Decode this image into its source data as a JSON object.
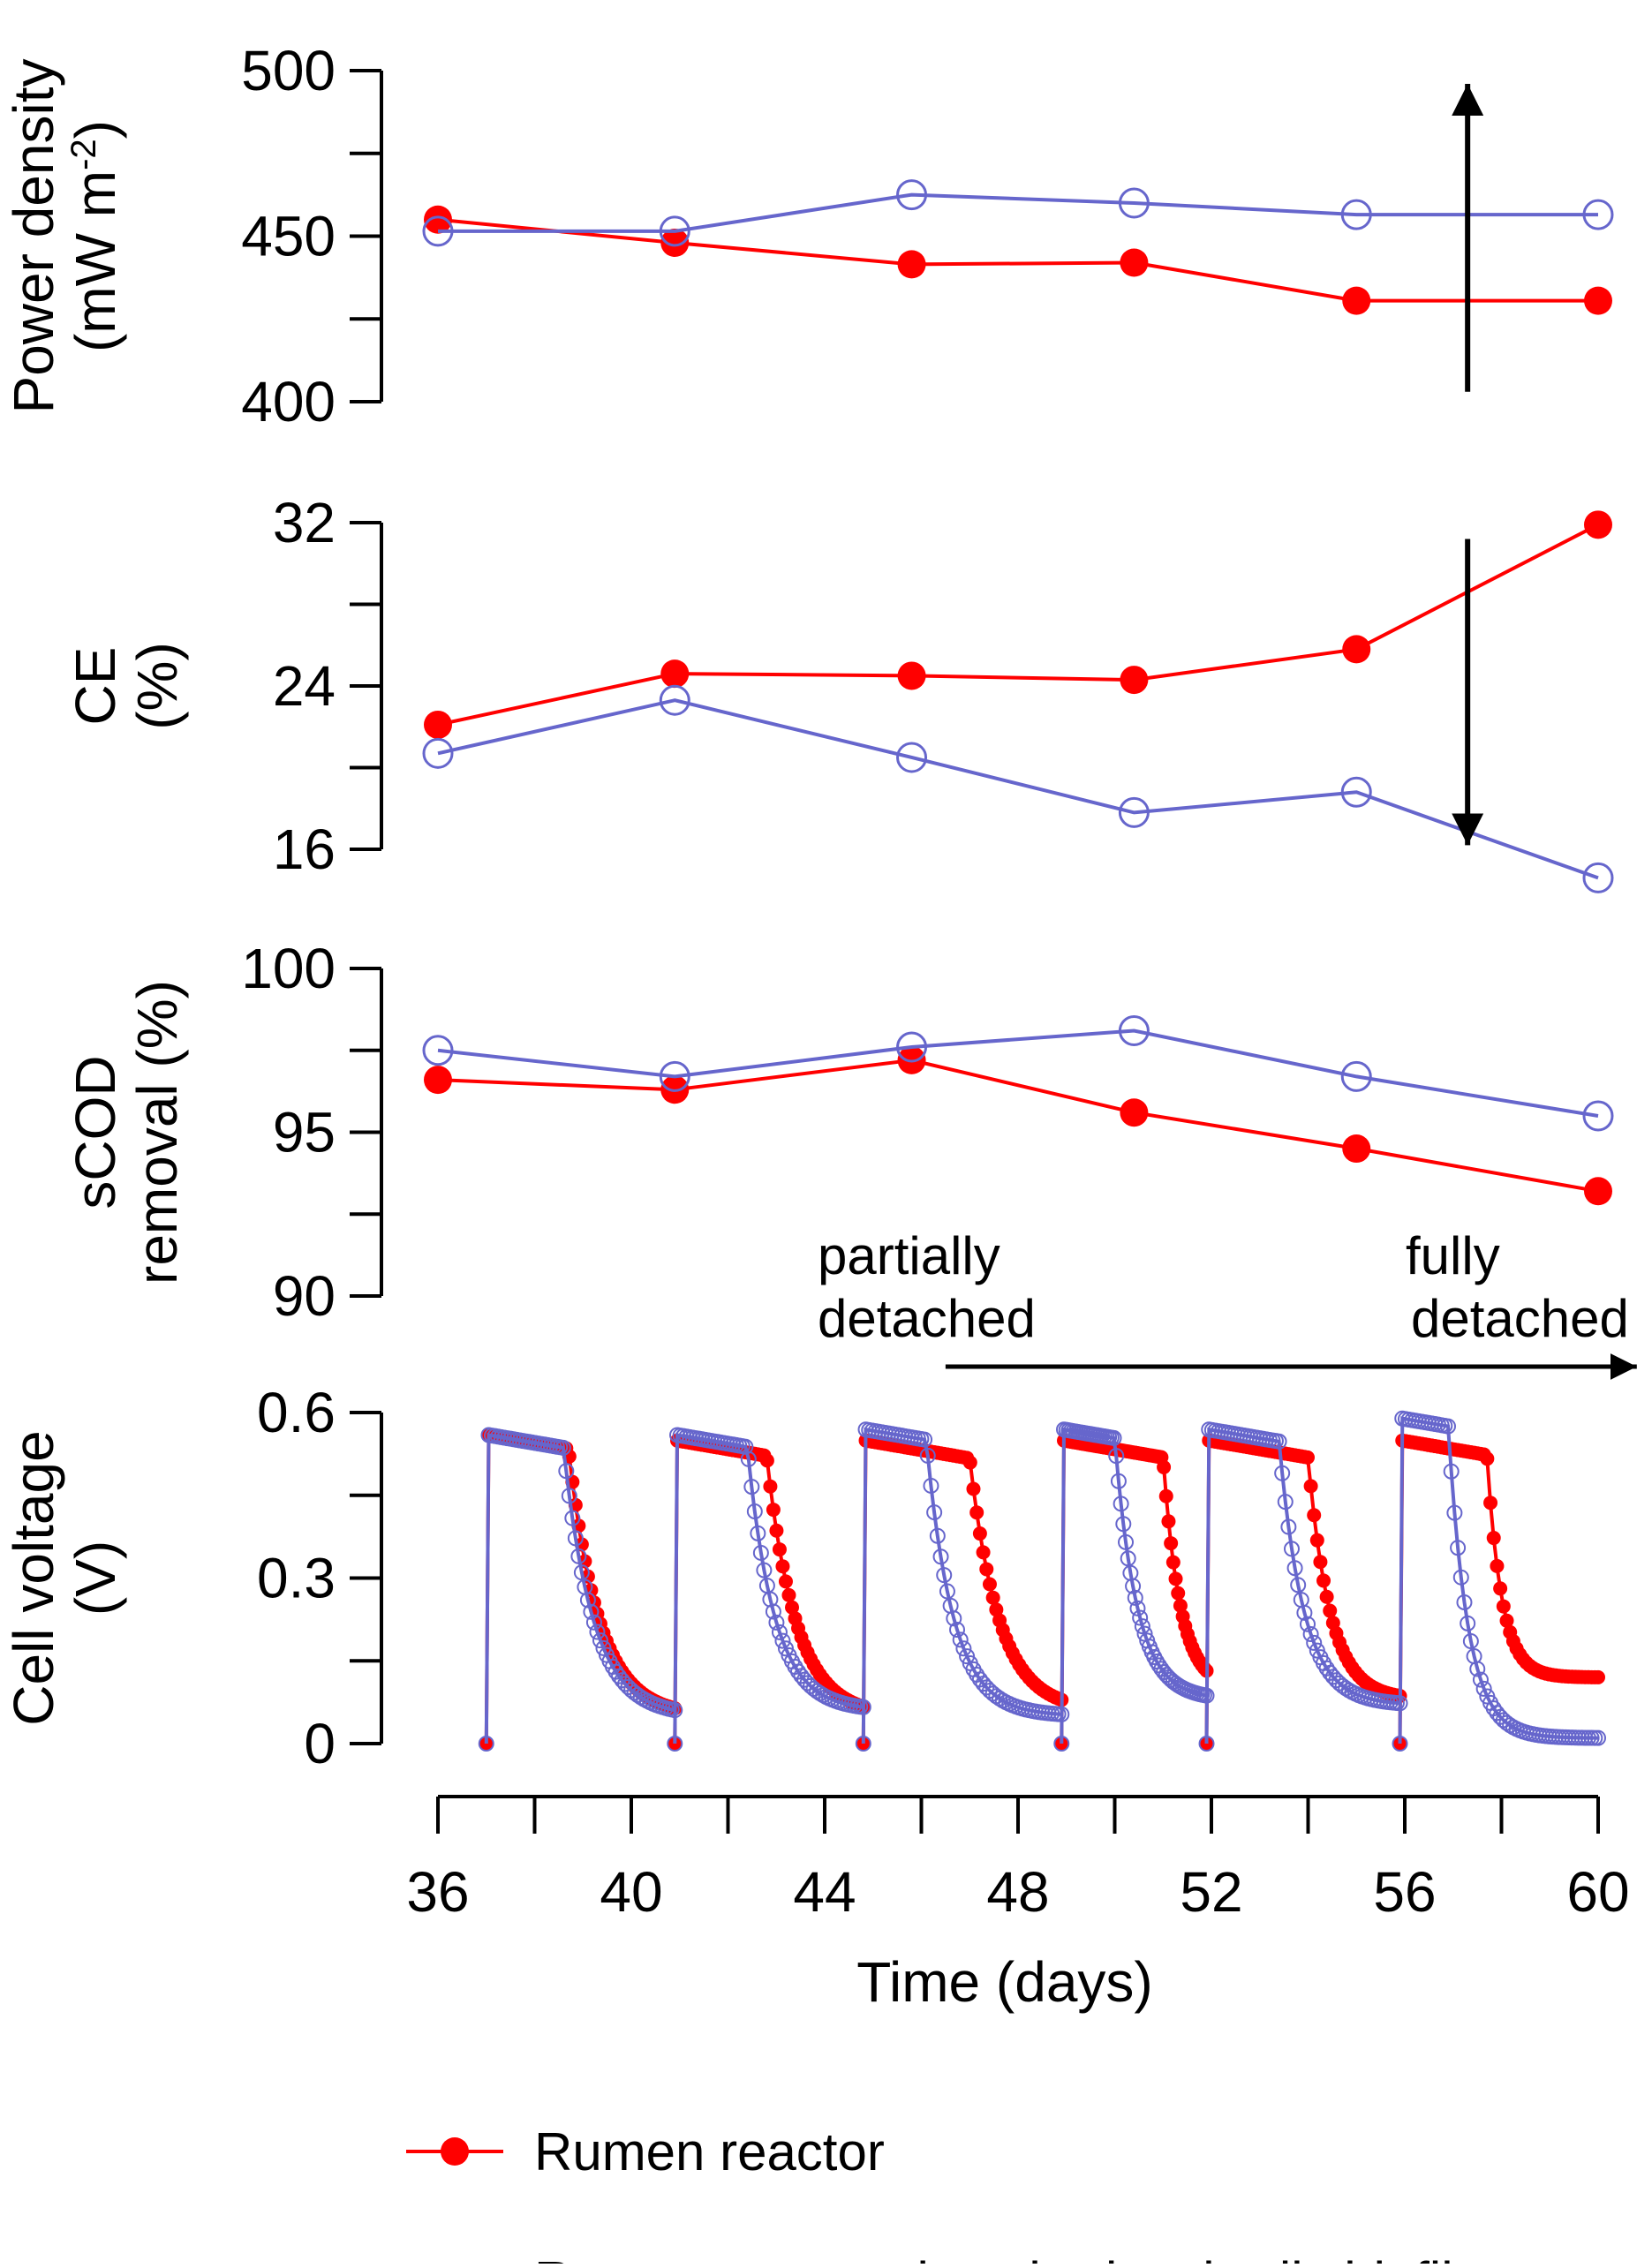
{
  "chart_data": {
    "type": "line",
    "colors": {
      "rumen": "#ff0000",
      "detached": "#6666cc",
      "arrow": "#000000"
    },
    "x_axis": {
      "label": "Time (days)",
      "range": [
        36,
        60
      ],
      "major_ticks": [
        36,
        40,
        44,
        48,
        52,
        56,
        60
      ],
      "minor_ticks": [
        38,
        42,
        46,
        50,
        54,
        58
      ],
      "tick_labels": [
        "36",
        "40",
        "44",
        "48",
        "52",
        "56",
        "60"
      ]
    },
    "panels": [
      {
        "id": "power",
        "ylabel": [
          "Power density",
          "(mW m",
          "-2",
          ")"
        ],
        "ylim": [
          400,
          500
        ],
        "major_ticks": [
          400,
          450,
          500
        ],
        "minor_ticks": [
          425,
          475
        ],
        "tick_labels": [
          "400",
          "450",
          "500"
        ],
        "series": [
          {
            "name": "Rumen reactor",
            "x": [
              36,
              40.9,
              45.8,
              50.4,
              55,
              60
            ],
            "y": [
              455,
              448,
              441.5,
              442,
              430.5,
              430.5
            ]
          },
          {
            "name": "Rumen reactor detached cathodic biofilm",
            "x": [
              36,
              40.9,
              45.8,
              50.4,
              55,
              60
            ],
            "y": [
              451.5,
              451.5,
              462.5,
              460,
              456.5,
              456.5
            ]
          }
        ],
        "arrow": {
          "x": 57.3,
          "from": 403,
          "to": 496,
          "direction": "up"
        }
      },
      {
        "id": "ce",
        "ylabel": [
          "CE",
          "(%)"
        ],
        "ylim": [
          16,
          32
        ],
        "major_ticks": [
          16,
          24,
          32
        ],
        "minor_ticks": [
          20,
          28
        ],
        "tick_labels": [
          "16",
          "24",
          "32"
        ],
        "series": [
          {
            "name": "Rumen reactor",
            "x": [
              36,
              40.9,
              45.8,
              50.4,
              55,
              60
            ],
            "y": [
              22.1,
              24.6,
              24.5,
              24.3,
              25.8,
              31.9
            ]
          },
          {
            "name": "Rumen reactor detached cathodic biofilm",
            "x": [
              36,
              40.9,
              45.8,
              50.4,
              55,
              60
            ],
            "y": [
              20.7,
              23.3,
              20.5,
              17.8,
              18.8,
              14.6
            ]
          }
        ],
        "arrow": {
          "x": 57.3,
          "from": 31.2,
          "to": 16.2,
          "direction": "down"
        }
      },
      {
        "id": "scod",
        "ylabel": [
          "sCOD",
          "removal (%)"
        ],
        "ylim": [
          90,
          100
        ],
        "major_ticks": [
          90,
          95,
          100
        ],
        "minor_ticks": [
          92.5,
          97.5
        ],
        "tick_labels": [
          "90",
          "95",
          "100"
        ],
        "series": [
          {
            "name": "Rumen reactor",
            "x": [
              36,
              40.9,
              45.8,
              50.4,
              55,
              60
            ],
            "y": [
              96.6,
              96.3,
              97.2,
              95.6,
              94.5,
              93.2
            ]
          },
          {
            "name": "Rumen reactor detached cathodic biofilm",
            "x": [
              36,
              40.9,
              45.8,
              50.4,
              55,
              60
            ],
            "y": [
              97.5,
              96.7,
              97.6,
              98.1,
              96.7,
              95.5
            ]
          }
        ]
      },
      {
        "id": "voltage",
        "ylabel": [
          "Cell voltage",
          "(V)"
        ],
        "ylim": [
          0,
          0.6
        ],
        "major_ticks": [
          0,
          0.3,
          0.6
        ],
        "minor_ticks": [
          0.15,
          0.45
        ],
        "tick_labels": [
          "0",
          "0.3",
          "0.6"
        ],
        "cycles": {
          "rumen": [
            {
              "start": 37.0,
              "end": 40.9,
              "plateau": 0.56,
              "knee": 38.7,
              "tau": 0.62,
              "floor": 0.05
            },
            {
              "start": 40.9,
              "end": 44.8,
              "plateau": 0.55,
              "knee": 42.8,
              "tau": 0.6,
              "floor": 0.05
            },
            {
              "start": 44.8,
              "end": 48.9,
              "plateau": 0.55,
              "knee": 47.0,
              "tau": 0.6,
              "floor": 0.06
            },
            {
              "start": 48.9,
              "end": 51.9,
              "plateau": 0.55,
              "knee": 51.0,
              "tau": 0.35,
              "floor": 0.1
            },
            {
              "start": 51.9,
              "end": 55.9,
              "plateau": 0.55,
              "knee": 54.0,
              "tau": 0.45,
              "floor": 0.08
            },
            {
              "start": 55.9,
              "end": 60.0,
              "plateau": 0.55,
              "knee": 57.7,
              "tau": 0.3,
              "floor": 0.12
            }
          ],
          "detached": [
            {
              "start": 37.0,
              "end": 40.9,
              "plateau": 0.56,
              "knee": 38.6,
              "tau": 0.6,
              "floor": 0.05
            },
            {
              "start": 40.9,
              "end": 44.8,
              "plateau": 0.56,
              "knee": 42.4,
              "tau": 0.55,
              "floor": 0.06
            },
            {
              "start": 44.8,
              "end": 48.9,
              "plateau": 0.57,
              "knee": 46.1,
              "tau": 0.55,
              "floor": 0.05
            },
            {
              "start": 48.9,
              "end": 51.9,
              "plateau": 0.57,
              "knee": 50.0,
              "tau": 0.45,
              "floor": 0.08
            },
            {
              "start": 51.9,
              "end": 55.9,
              "plateau": 0.57,
              "knee": 53.4,
              "tau": 0.5,
              "floor": 0.07
            },
            {
              "start": 55.9,
              "end": 60.0,
              "plateau": 0.59,
              "knee": 56.9,
              "tau": 0.4,
              "floor": 0.01
            }
          ]
        },
        "span_arrow": {
          "from": 46.5,
          "to": 60.8
        }
      }
    ],
    "annotations": [
      {
        "id": "partially",
        "lines": [
          "partially",
          "detached"
        ]
      },
      {
        "id": "fully",
        "lines": [
          "fully",
          "detached"
        ]
      }
    ],
    "legend": {
      "position": "bottom",
      "entries": [
        {
          "label": "Rumen reactor",
          "marker": "filled-circle",
          "color": "#ff0000"
        },
        {
          "label": "Rumen reactor detached cathodic biofilm",
          "marker": "open-circle",
          "color": "#6666cc"
        }
      ]
    }
  }
}
